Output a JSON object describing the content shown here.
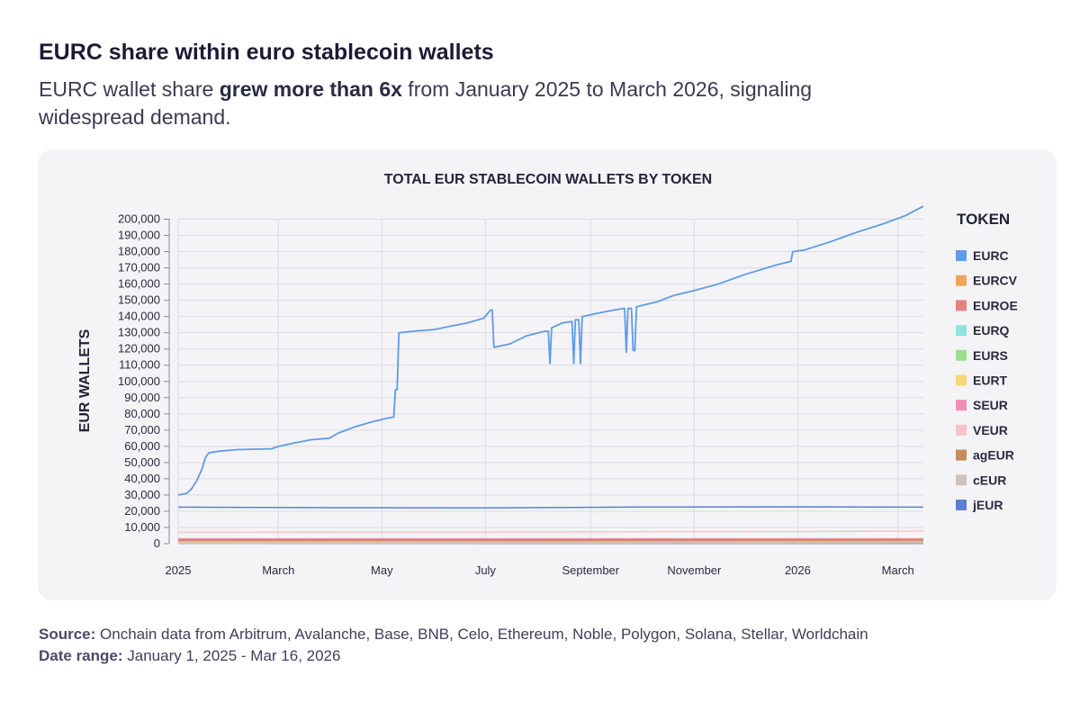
{
  "header": {
    "title": "EURC share within euro stablecoin wallets",
    "subtitle_pre": "EURC wallet share ",
    "subtitle_bold": "grew more than 6x",
    "subtitle_post": " from January 2025 to March 2026, signaling widespread demand."
  },
  "footer": {
    "source_label": "Source:",
    "source_text": " Onchain data from Arbitrum, Avalanche, Base, BNB, Celo, Ethereum, Noble, Polygon, Solana, Stellar, Worldchain",
    "range_label": "Date range:",
    "range_text": " January 1, 2025 - Mar 16, 2026"
  },
  "chart_data": {
    "type": "line",
    "title": "TOTAL EUR STABLECOIN WALLETS BY TOKEN",
    "ylabel": "EUR WALLETS",
    "xlabel": "",
    "legend_title": "TOKEN",
    "legend_position": "right",
    "grid": true,
    "xlim": [
      "2025-01-01",
      "2026-03-16"
    ],
    "ylim": [
      0,
      200000
    ],
    "yticks": [
      0,
      10000,
      20000,
      30000,
      40000,
      50000,
      60000,
      70000,
      80000,
      90000,
      100000,
      110000,
      120000,
      130000,
      140000,
      150000,
      160000,
      170000,
      180000,
      190000,
      200000
    ],
    "ytick_labels": [
      "0",
      "10,000",
      "20,000",
      "30,000",
      "40,000",
      "50,000",
      "60,000",
      "70,000",
      "80,000",
      "90,000",
      "100,000",
      "110,000",
      "120,000",
      "130,000",
      "140,000",
      "150,000",
      "160,000",
      "170,000",
      "180,000",
      "190,000",
      "200,000"
    ],
    "xticks": [
      {
        "date": "2025-01-01",
        "label": "2025"
      },
      {
        "date": "2025-03-01",
        "label": "March"
      },
      {
        "date": "2025-05-01",
        "label": "May"
      },
      {
        "date": "2025-07-01",
        "label": "July"
      },
      {
        "date": "2025-09-01",
        "label": "September"
      },
      {
        "date": "2025-11-01",
        "label": "November"
      },
      {
        "date": "2026-01-01",
        "label": "2026"
      },
      {
        "date": "2026-03-01",
        "label": "March"
      }
    ],
    "series": [
      {
        "name": "EURC",
        "color": "#5f9be6",
        "points": [
          [
            "2025-01-01",
            30000
          ],
          [
            "2025-01-06",
            31000
          ],
          [
            "2025-01-09",
            34000
          ],
          [
            "2025-01-12",
            39000
          ],
          [
            "2025-01-15",
            46000
          ],
          [
            "2025-01-17",
            53000
          ],
          [
            "2025-01-19",
            56000
          ],
          [
            "2025-01-25",
            57000
          ],
          [
            "2025-02-05",
            58000
          ],
          [
            "2025-02-25",
            58500
          ],
          [
            "2025-03-01",
            60000
          ],
          [
            "2025-03-10",
            62000
          ],
          [
            "2025-03-20",
            64000
          ],
          [
            "2025-03-31",
            65000
          ],
          [
            "2025-04-05",
            68000
          ],
          [
            "2025-04-15",
            72000
          ],
          [
            "2025-04-25",
            75000
          ],
          [
            "2025-05-05",
            77500
          ],
          [
            "2025-05-08",
            78000
          ],
          [
            "2025-05-09",
            95000
          ],
          [
            "2025-05-10",
            95000
          ],
          [
            "2025-05-11",
            130000
          ],
          [
            "2025-05-20",
            131000
          ],
          [
            "2025-06-01",
            132000
          ],
          [
            "2025-06-10",
            134000
          ],
          [
            "2025-06-20",
            136000
          ],
          [
            "2025-06-30",
            139000
          ],
          [
            "2025-07-04",
            144000
          ],
          [
            "2025-07-05",
            144000
          ],
          [
            "2025-07-06",
            121000
          ],
          [
            "2025-07-15",
            123000
          ],
          [
            "2025-07-25",
            128000
          ],
          [
            "2025-08-05",
            131000
          ],
          [
            "2025-08-07",
            131000
          ],
          [
            "2025-08-08",
            111000
          ],
          [
            "2025-08-09",
            133000
          ],
          [
            "2025-08-15",
            136000
          ],
          [
            "2025-08-21",
            137000
          ],
          [
            "2025-08-22",
            111000
          ],
          [
            "2025-08-23",
            138000
          ],
          [
            "2025-08-25",
            138000
          ],
          [
            "2025-08-26",
            111000
          ],
          [
            "2025-08-27",
            140000
          ],
          [
            "2025-09-05",
            142000
          ],
          [
            "2025-09-15",
            144000
          ],
          [
            "2025-09-21",
            145000
          ],
          [
            "2025-09-22",
            118000
          ],
          [
            "2025-09-23",
            145000
          ],
          [
            "2025-09-25",
            145000
          ],
          [
            "2025-09-26",
            119000
          ],
          [
            "2025-09-27",
            119000
          ],
          [
            "2025-09-28",
            146000
          ],
          [
            "2025-10-10",
            149000
          ],
          [
            "2025-10-20",
            153000
          ],
          [
            "2025-11-01",
            156000
          ],
          [
            "2025-11-15",
            160000
          ],
          [
            "2025-12-01",
            166000
          ],
          [
            "2025-12-20",
            172000
          ],
          [
            "2025-12-28",
            174000
          ],
          [
            "2025-12-29",
            180000
          ],
          [
            "2026-01-05",
            181000
          ],
          [
            "2026-01-20",
            186000
          ],
          [
            "2026-02-05",
            192000
          ],
          [
            "2026-02-20",
            197000
          ],
          [
            "2026-03-05",
            202000
          ],
          [
            "2026-03-16",
            208000
          ]
        ]
      },
      {
        "name": "EURCV",
        "color": "#f0a35b",
        "points": [
          [
            "2025-01-01",
            1500
          ],
          [
            "2025-07-01",
            1600
          ],
          [
            "2026-01-01",
            1700
          ],
          [
            "2026-03-16",
            1800
          ]
        ]
      },
      {
        "name": "EUROE",
        "color": "#e8807e",
        "points": [
          [
            "2025-01-01",
            2000
          ],
          [
            "2025-07-01",
            2000
          ],
          [
            "2026-01-01",
            2200
          ],
          [
            "2026-03-16",
            2300
          ]
        ]
      },
      {
        "name": "EURQ",
        "color": "#8fe3e0",
        "points": [
          [
            "2025-01-01",
            300
          ],
          [
            "2025-07-01",
            400
          ],
          [
            "2026-01-01",
            500
          ],
          [
            "2026-03-16",
            600
          ]
        ]
      },
      {
        "name": "EURS",
        "color": "#9be08a",
        "points": [
          [
            "2025-01-01",
            1000
          ],
          [
            "2025-07-01",
            1000
          ],
          [
            "2026-01-01",
            1000
          ],
          [
            "2026-03-16",
            1000
          ]
        ]
      },
      {
        "name": "EURT",
        "color": "#f6d77a",
        "points": [
          [
            "2025-01-01",
            800
          ],
          [
            "2025-07-01",
            800
          ],
          [
            "2026-01-01",
            800
          ],
          [
            "2026-03-16",
            800
          ]
        ]
      },
      {
        "name": "SEUR",
        "color": "#ee8fb2",
        "points": [
          [
            "2025-01-01",
            3000
          ],
          [
            "2025-07-01",
            3000
          ],
          [
            "2026-01-01",
            3000
          ],
          [
            "2026-03-16",
            3000
          ]
        ]
      },
      {
        "name": "VEUR",
        "color": "#f6c4c7",
        "points": [
          [
            "2025-01-01",
            7000
          ],
          [
            "2025-07-01",
            7200
          ],
          [
            "2026-01-01",
            7500
          ],
          [
            "2026-03-16",
            7800
          ]
        ]
      },
      {
        "name": "agEUR",
        "color": "#c58c5c",
        "points": [
          [
            "2025-01-01",
            2500
          ],
          [
            "2025-07-01",
            2500
          ],
          [
            "2026-01-01",
            2500
          ],
          [
            "2026-03-16",
            2600
          ]
        ]
      },
      {
        "name": "cEUR",
        "color": "#d3c2b8",
        "points": [
          [
            "2025-01-01",
            500
          ],
          [
            "2025-07-01",
            600
          ],
          [
            "2026-01-01",
            700
          ],
          [
            "2026-03-16",
            700
          ]
        ]
      },
      {
        "name": "jEUR",
        "color": "#5b7fd4",
        "points": [
          [
            "2025-01-01",
            22500
          ],
          [
            "2025-04-01",
            22200
          ],
          [
            "2025-07-01",
            22000
          ],
          [
            "2025-10-01",
            22600
          ],
          [
            "2026-01-01",
            22700
          ],
          [
            "2026-03-16",
            22500
          ]
        ]
      }
    ]
  }
}
